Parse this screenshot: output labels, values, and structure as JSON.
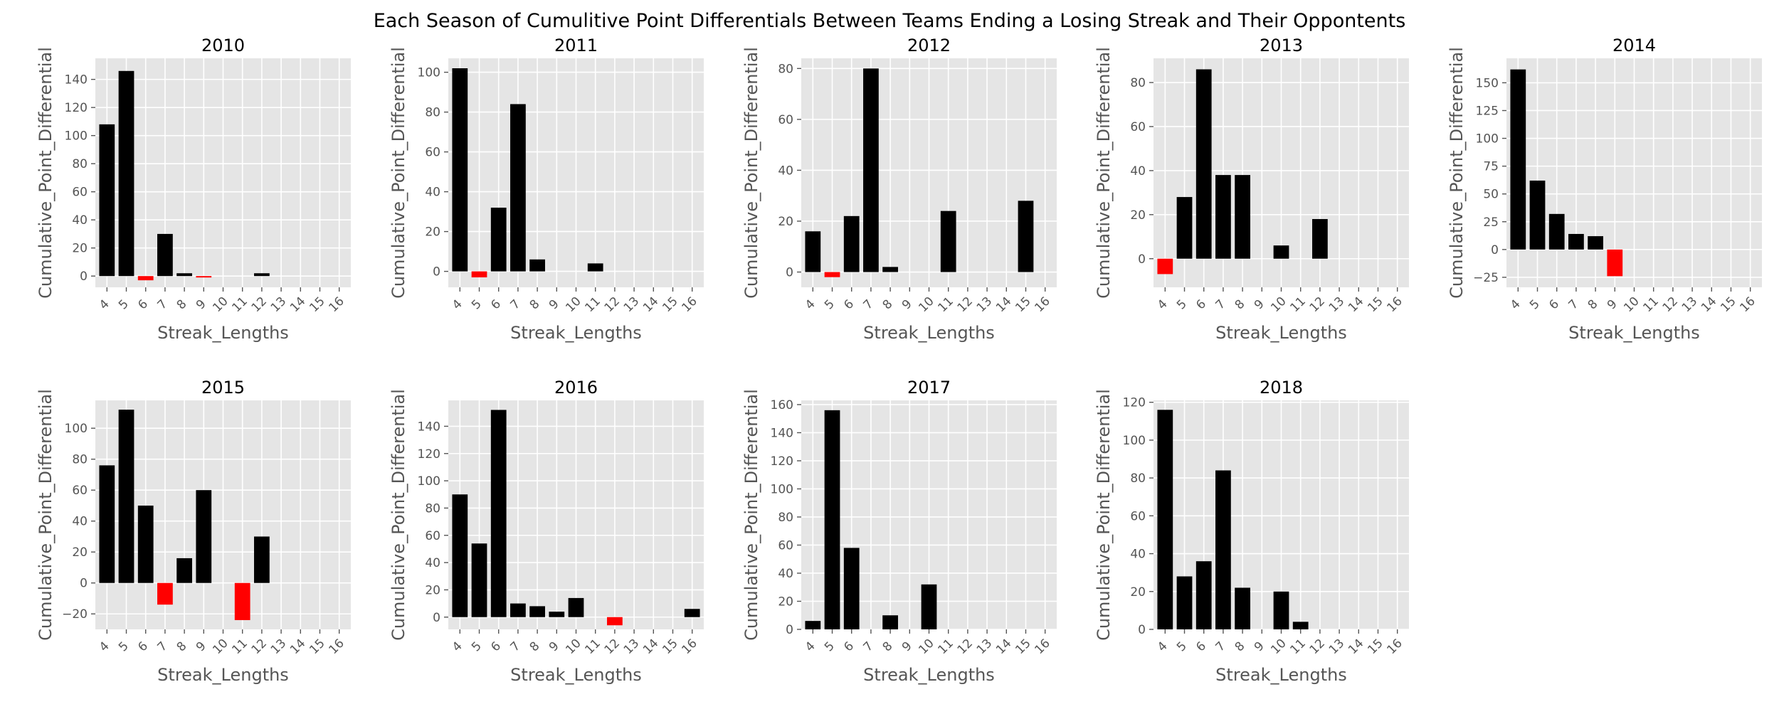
{
  "title": "Each Season of Cumulitive Point Differentials Between Teams Ending a Losing Streak and Their Oppontents",
  "colors": {
    "positive": "#000000",
    "negative": "#ff0000",
    "panel_bg": "#e5e5e5",
    "grid": "#ffffff",
    "tick": "#555555"
  },
  "chart_data": [
    {
      "type": "bar",
      "title": "2010",
      "xlabel": "Streak_Lengths",
      "ylabel": "Cumulative_Point_Differential",
      "ylim": [
        -8,
        155
      ],
      "yticks": [
        0,
        20,
        40,
        60,
        80,
        100,
        120,
        140
      ],
      "grid": true,
      "categories": [
        "4",
        "5",
        "6",
        "7",
        "8",
        "9",
        "10",
        "11",
        "12",
        "13",
        "14",
        "15",
        "16"
      ],
      "values": [
        108,
        146,
        -3,
        30,
        2,
        -1,
        null,
        null,
        2,
        null,
        null,
        null,
        null
      ]
    },
    {
      "type": "bar",
      "title": "2011",
      "xlabel": "Streak_Lengths",
      "ylabel": "Cumulative_Point_Differential",
      "ylim": [
        -8,
        107
      ],
      "yticks": [
        0,
        20,
        40,
        60,
        80,
        100
      ],
      "grid": true,
      "categories": [
        "4",
        "5",
        "6",
        "7",
        "8",
        "9",
        "10",
        "11",
        "12",
        "13",
        "14",
        "15",
        "16"
      ],
      "values": [
        102,
        -3,
        32,
        84,
        6,
        null,
        null,
        4,
        null,
        null,
        null,
        null,
        null
      ]
    },
    {
      "type": "bar",
      "title": "2012",
      "xlabel": "Streak_Lengths",
      "ylabel": "Cumulative_Point_Differential",
      "ylim": [
        -6,
        84
      ],
      "yticks": [
        0,
        20,
        40,
        60,
        80
      ],
      "grid": true,
      "categories": [
        "4",
        "5",
        "6",
        "7",
        "8",
        "9",
        "10",
        "11",
        "12",
        "13",
        "14",
        "15",
        "16"
      ],
      "values": [
        16,
        -2,
        22,
        80,
        2,
        null,
        null,
        24,
        null,
        null,
        null,
        28,
        null
      ]
    },
    {
      "type": "bar",
      "title": "2013",
      "xlabel": "Streak_Lengths",
      "ylabel": "Cumulative_Point_Differential",
      "ylim": [
        -13,
        91
      ],
      "yticks": [
        0,
        20,
        40,
        60,
        80
      ],
      "grid": true,
      "categories": [
        "4",
        "5",
        "6",
        "7",
        "8",
        "9",
        "10",
        "11",
        "12",
        "13",
        "14",
        "15",
        "16"
      ],
      "values": [
        -7,
        28,
        86,
        38,
        38,
        null,
        6,
        null,
        18,
        null,
        null,
        null,
        null
      ]
    },
    {
      "type": "bar",
      "title": "2014",
      "xlabel": "Streak_Lengths",
      "ylabel": "Cumulative_Point_Differential",
      "ylim": [
        -34,
        172
      ],
      "yticks": [
        -25,
        0,
        25,
        50,
        75,
        100,
        125,
        150
      ],
      "grid": true,
      "categories": [
        "4",
        "5",
        "6",
        "7",
        "8",
        "9",
        "10",
        "11",
        "12",
        "13",
        "14",
        "15",
        "16"
      ],
      "values": [
        162,
        62,
        32,
        14,
        12,
        -24,
        null,
        null,
        null,
        null,
        null,
        null,
        null
      ]
    },
    {
      "type": "bar",
      "title": "2015",
      "xlabel": "Streak_Lengths",
      "ylabel": "Cumulative_Point_Differential",
      "ylim": [
        -30,
        118
      ],
      "yticks": [
        -20,
        0,
        20,
        40,
        60,
        80,
        100
      ],
      "grid": true,
      "categories": [
        "4",
        "5",
        "6",
        "7",
        "8",
        "9",
        "10",
        "11",
        "12",
        "13",
        "14",
        "15",
        "16"
      ],
      "values": [
        76,
        112,
        50,
        -14,
        16,
        60,
        null,
        -24,
        30,
        null,
        null,
        null,
        null
      ]
    },
    {
      "type": "bar",
      "title": "2016",
      "xlabel": "Streak_Lengths",
      "ylabel": "Cumulative_Point_Differential",
      "ylim": [
        -9,
        159
      ],
      "yticks": [
        0,
        20,
        40,
        60,
        80,
        100,
        120,
        140
      ],
      "grid": true,
      "categories": [
        "4",
        "5",
        "6",
        "7",
        "8",
        "9",
        "10",
        "11",
        "12",
        "13",
        "14",
        "15",
        "16"
      ],
      "values": [
        90,
        54,
        152,
        10,
        8,
        4,
        14,
        null,
        -6,
        null,
        null,
        null,
        6
      ]
    },
    {
      "type": "bar",
      "title": "2017",
      "xlabel": "Streak_Lengths",
      "ylabel": "Cumulative_Point_Differential",
      "ylim": [
        0,
        163
      ],
      "yticks": [
        0,
        20,
        40,
        60,
        80,
        100,
        120,
        140,
        160
      ],
      "grid": true,
      "categories": [
        "4",
        "5",
        "6",
        "7",
        "8",
        "9",
        "10",
        "11",
        "12",
        "13",
        "14",
        "15",
        "16"
      ],
      "values": [
        6,
        156,
        58,
        null,
        10,
        null,
        32,
        null,
        null,
        null,
        null,
        null,
        null
      ]
    },
    {
      "type": "bar",
      "title": "2018",
      "xlabel": "Streak_Lengths",
      "ylabel": "Cumulative_Point_Differential",
      "ylim": [
        0,
        121
      ],
      "yticks": [
        0,
        20,
        40,
        60,
        80,
        100,
        120
      ],
      "grid": true,
      "categories": [
        "4",
        "5",
        "6",
        "7",
        "8",
        "9",
        "10",
        "11",
        "12",
        "13",
        "14",
        "15",
        "16"
      ],
      "values": [
        116,
        28,
        36,
        84,
        22,
        null,
        20,
        4,
        null,
        null,
        null,
        null,
        null
      ]
    }
  ]
}
